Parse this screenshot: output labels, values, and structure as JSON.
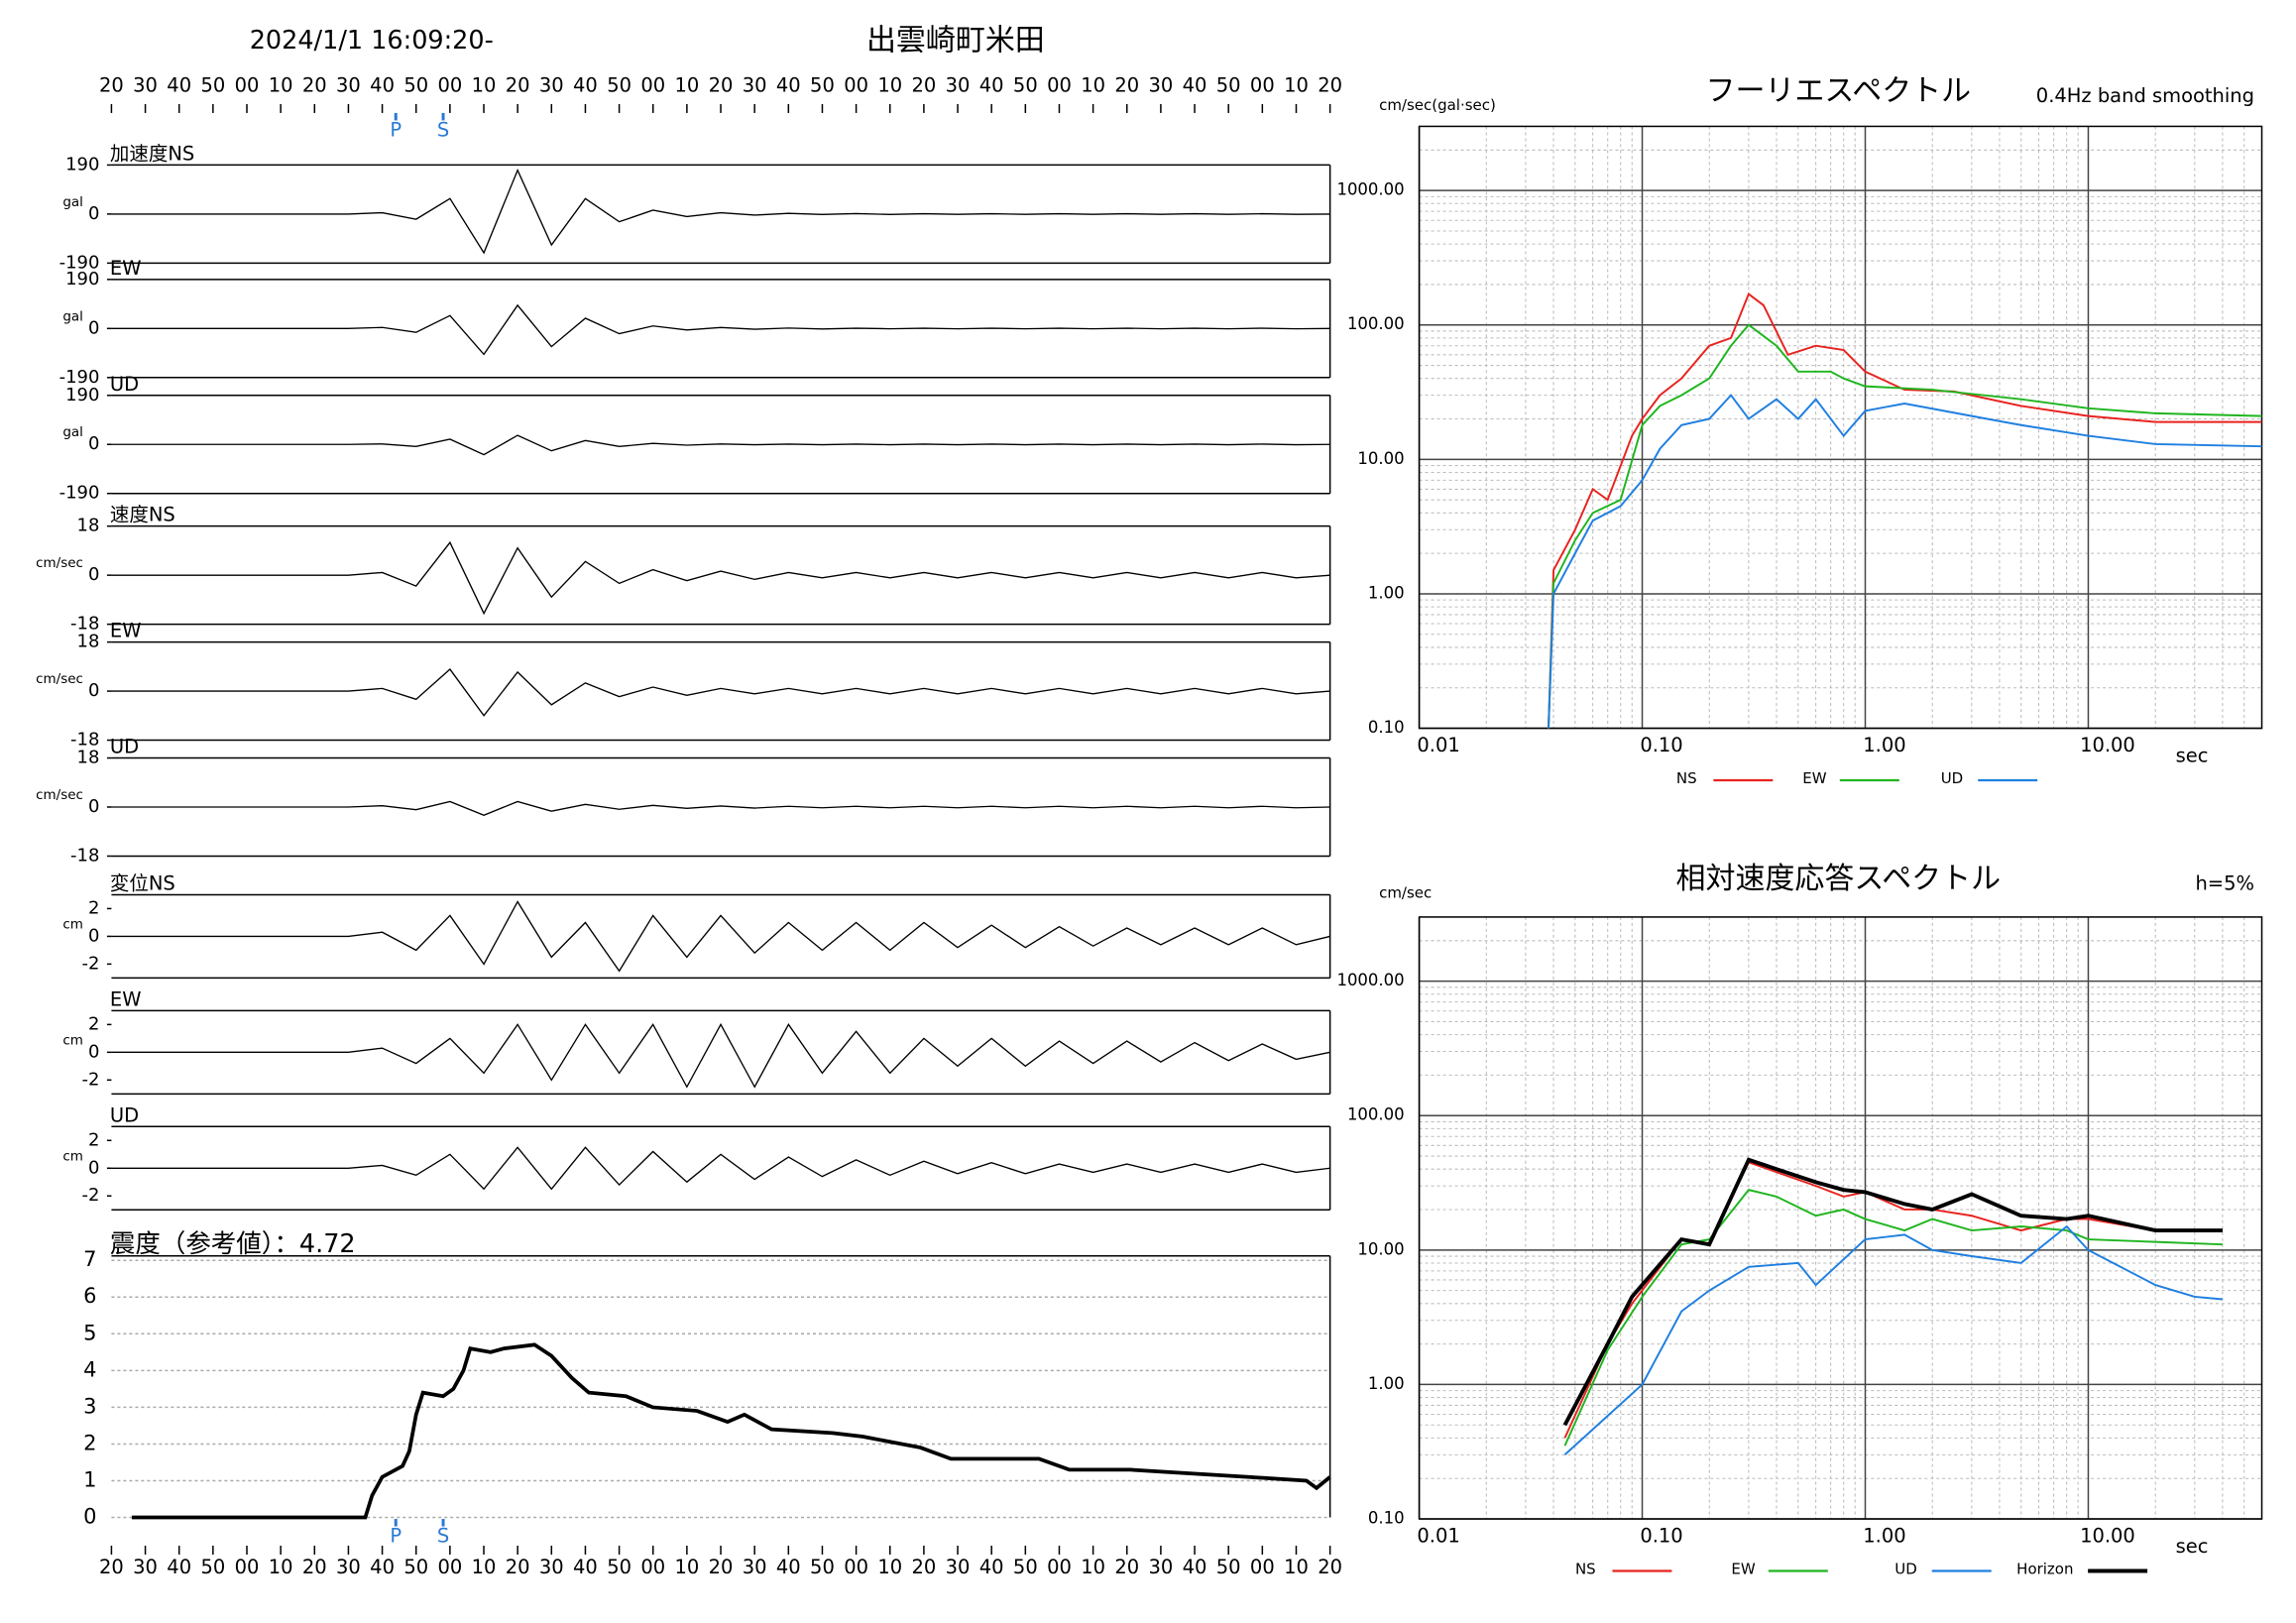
{
  "chart_data": [
    {
      "type": "waveform",
      "title": "2024/1/1 16:09:20-",
      "subtitle": "出雲崎町米田",
      "xlim": [
        0,
        360
      ],
      "xticks": [
        {
          "value": 0,
          "label": "20"
        },
        {
          "value": 10,
          "label": "30"
        },
        {
          "value": 20,
          "label": "40"
        },
        {
          "value": 30,
          "label": "50"
        },
        {
          "value": 40,
          "label": "00"
        },
        {
          "value": 50,
          "label": "10"
        },
        {
          "value": 60,
          "label": "20"
        },
        {
          "value": 70,
          "label": "30"
        },
        {
          "value": 80,
          "label": "40"
        },
        {
          "value": 90,
          "label": "50"
        },
        {
          "value": 100,
          "label": "00"
        },
        {
          "value": 110,
          "label": "10"
        },
        {
          "value": 120,
          "label": "20"
        },
        {
          "value": 130,
          "label": "30"
        },
        {
          "value": 140,
          "label": "40"
        },
        {
          "value": 150,
          "label": "50"
        },
        {
          "value": 160,
          "label": "00"
        },
        {
          "value": 170,
          "label": "10"
        },
        {
          "value": 180,
          "label": "20"
        },
        {
          "value": 190,
          "label": "30"
        },
        {
          "value": 200,
          "label": "40"
        },
        {
          "value": 210,
          "label": "50"
        },
        {
          "value": 220,
          "label": "00"
        },
        {
          "value": 230,
          "label": "10"
        },
        {
          "value": 240,
          "label": "20"
        },
        {
          "value": 250,
          "label": "30"
        },
        {
          "value": 260,
          "label": "40"
        },
        {
          "value": 270,
          "label": "50"
        },
        {
          "value": 280,
          "label": "00"
        },
        {
          "value": 290,
          "label": "10"
        },
        {
          "value": 300,
          "label": "20"
        },
        {
          "value": 310,
          "label": "30"
        },
        {
          "value": 320,
          "label": "40"
        },
        {
          "value": 330,
          "label": "50"
        },
        {
          "value": 340,
          "label": "00"
        },
        {
          "value": 350,
          "label": "10"
        },
        {
          "value": 360,
          "label": "20"
        }
      ],
      "markers": [
        {
          "value": 84,
          "label": "P"
        },
        {
          "value": 98,
          "label": "S"
        }
      ],
      "marker_color": "#2a7ad5",
      "x": [
        0,
        10,
        20,
        30,
        40,
        50,
        60,
        70,
        80,
        90,
        100,
        110,
        120,
        130,
        140,
        150,
        160,
        170,
        180,
        190,
        200,
        210,
        220,
        230,
        240,
        250,
        260,
        270,
        280,
        290,
        300,
        310,
        320,
        330,
        340,
        350,
        360
      ],
      "panels": [
        {
          "name": "加速度NS",
          "unit": "gal",
          "ylim": [
            -190,
            190
          ],
          "yticks": [
            190,
            0,
            -190
          ],
          "values": [
            0,
            0,
            0,
            0,
            0,
            0,
            0,
            0,
            5,
            -20,
            60,
            -150,
            170,
            -120,
            60,
            -30,
            15,
            -10,
            5,
            -4,
            3,
            -2,
            2,
            -2,
            1,
            -1,
            1,
            -1,
            1,
            -1,
            1,
            -1,
            1,
            -1,
            1,
            -1,
            0
          ]
        },
        {
          "name": "EW",
          "unit": "gal",
          "ylim": [
            -190,
            190
          ],
          "yticks": [
            190,
            0,
            -190
          ],
          "values": [
            0,
            0,
            0,
            0,
            0,
            0,
            0,
            0,
            4,
            -15,
            50,
            -100,
            90,
            -70,
            40,
            -20,
            10,
            -6,
            4,
            -3,
            2,
            -2,
            1,
            -1,
            1,
            -1,
            1,
            -1,
            1,
            -1,
            1,
            -1,
            1,
            -1,
            1,
            -1,
            0
          ]
        },
        {
          "name": "UD",
          "unit": "gal",
          "ylim": [
            -190,
            190
          ],
          "yticks": [
            190,
            0,
            -190
          ],
          "values": [
            0,
            0,
            0,
            0,
            0,
            0,
            0,
            0,
            2,
            -8,
            20,
            -40,
            35,
            -25,
            15,
            -8,
            4,
            -3,
            2,
            -1,
            1,
            -1,
            1,
            -1,
            1,
            -1,
            1,
            -1,
            1,
            -1,
            1,
            -1,
            1,
            -1,
            1,
            -1,
            0
          ]
        },
        {
          "name": "速度NS",
          "unit": "cm/sec",
          "ylim": [
            -18,
            18
          ],
          "yticks": [
            18,
            0,
            -18
          ],
          "values": [
            0,
            0,
            0,
            0,
            0,
            0,
            0,
            0,
            1,
            -4,
            12,
            -14,
            10,
            -8,
            5,
            -3,
            2,
            -2,
            1.5,
            -1.5,
            1,
            -1,
            1,
            -1,
            1,
            -1,
            1,
            -1,
            1,
            -1,
            1,
            -1,
            1,
            -1,
            1,
            -1,
            0
          ]
        },
        {
          "name": "EW",
          "unit": "cm/sec",
          "ylim": [
            -18,
            18
          ],
          "yticks": [
            18,
            0,
            -18
          ],
          "values": [
            0,
            0,
            0,
            0,
            0,
            0,
            0,
            0,
            1,
            -3,
            8,
            -9,
            7,
            -5,
            3,
            -2,
            1.5,
            -1.5,
            1,
            -1,
            1,
            -1,
            1,
            -1,
            1,
            -1,
            1,
            -1,
            1,
            -1,
            1,
            -1,
            1,
            -1,
            1,
            -1,
            0
          ]
        },
        {
          "name": "UD",
          "unit": "cm/sec",
          "ylim": [
            -18,
            18
          ],
          "yticks": [
            18,
            0,
            -18
          ],
          "values": [
            0,
            0,
            0,
            0,
            0,
            0,
            0,
            0,
            0.5,
            -1,
            2,
            -3,
            2,
            -1.5,
            1,
            -0.8,
            0.6,
            -0.5,
            0.4,
            -0.4,
            0.3,
            -0.3,
            0.3,
            -0.3,
            0.3,
            -0.3,
            0.3,
            -0.3,
            0.3,
            -0.3,
            0.3,
            -0.3,
            0.3,
            -0.3,
            0.3,
            -0.3,
            0
          ]
        },
        {
          "name": "変位NS",
          "unit": "cm",
          "ylim": [
            -3,
            3
          ],
          "yticks": [
            2,
            0,
            -2
          ],
          "values": [
            0,
            0,
            0,
            0,
            0,
            0,
            0,
            0,
            0.3,
            -1,
            1.5,
            -2,
            2.5,
            -1.5,
            1,
            -2.5,
            1.5,
            -1.5,
            1.5,
            -1.2,
            1,
            -1,
            1,
            -1,
            1,
            -0.8,
            0.8,
            -0.8,
            0.7,
            -0.7,
            0.6,
            -0.6,
            0.6,
            -0.6,
            0.6,
            -0.6,
            0
          ]
        },
        {
          "name": "EW",
          "unit": "cm",
          "ylim": [
            -3,
            3
          ],
          "yticks": [
            2,
            0,
            -2
          ],
          "values": [
            0,
            0,
            0,
            0,
            0,
            0,
            0,
            0,
            0.3,
            -0.8,
            1,
            -1.5,
            2,
            -2,
            2,
            -1.5,
            2,
            -2.5,
            2,
            -2.5,
            2,
            -1.5,
            1.5,
            -1.5,
            1,
            -1,
            1,
            -1,
            0.8,
            -0.8,
            0.8,
            -0.7,
            0.7,
            -0.6,
            0.6,
            -0.5,
            0
          ]
        },
        {
          "name": "UD",
          "unit": "cm",
          "ylim": [
            -3,
            3
          ],
          "yticks": [
            2,
            0,
            -2
          ],
          "values": [
            0,
            0,
            0,
            0,
            0,
            0,
            0,
            0,
            0.2,
            -0.5,
            1,
            -1.5,
            1.5,
            -1.5,
            1.5,
            -1.2,
            1.2,
            -1,
            1,
            -0.8,
            0.8,
            -0.6,
            0.6,
            -0.5,
            0.5,
            -0.4,
            0.4,
            -0.4,
            0.3,
            -0.3,
            0.3,
            -0.3,
            0.3,
            -0.3,
            0.3,
            -0.3,
            0
          ]
        }
      ]
    },
    {
      "type": "line",
      "title": "震度（参考値）：4.72",
      "xlim": [
        0,
        360
      ],
      "ylim": [
        0,
        7
      ],
      "yticks": [
        0,
        1,
        2,
        3,
        4,
        5,
        6,
        7
      ],
      "grid": true,
      "color": "#000000",
      "x": [
        6,
        75,
        77,
        80,
        86,
        88,
        90,
        92,
        98,
        101,
        104,
        106,
        112,
        116,
        125,
        130,
        136,
        141,
        152,
        160,
        173,
        182,
        187,
        195,
        213,
        222,
        239,
        248,
        274,
        283,
        301,
        318,
        336,
        353,
        356,
        360
      ],
      "values": [
        0,
        0,
        0.6,
        1.1,
        1.4,
        1.8,
        2.8,
        3.4,
        3.3,
        3.5,
        4.0,
        4.6,
        4.5,
        4.6,
        4.7,
        4.4,
        3.8,
        3.4,
        3.3,
        3.0,
        2.9,
        2.6,
        2.8,
        2.4,
        2.3,
        2.2,
        1.9,
        1.6,
        1.6,
        1.3,
        1.3,
        1.2,
        1.1,
        1.0,
        0.8,
        1.1
      ]
    },
    {
      "type": "spectrum",
      "title": "フーリエスペクトル",
      "subtitle": "0.4Hz band smoothing",
      "y_label": "cm/sec(gal·sec)",
      "x_label": "sec",
      "log_x": true,
      "log_y": true,
      "xlim": [
        0.01,
        60
      ],
      "ylim": [
        0.1,
        3000
      ],
      "xticks": [
        {
          "value": 0.01,
          "label": "0.01"
        },
        {
          "value": 0.1,
          "label": "0.10"
        },
        {
          "value": 1,
          "label": "1.00"
        },
        {
          "value": 10,
          "label": "10.00"
        }
      ],
      "yticks": [
        {
          "value": 0.1,
          "label": "0.10"
        },
        {
          "value": 1,
          "label": "1.00"
        },
        {
          "value": 10,
          "label": "10.00"
        },
        {
          "value": 100,
          "label": "100.00"
        },
        {
          "value": 1000,
          "label": "1000.00"
        }
      ],
      "series": [
        {
          "name": "NS",
          "color": "#e8231f",
          "x": [
            0.038,
            0.04,
            0.05,
            0.06,
            0.07,
            0.09,
            0.1,
            0.12,
            0.15,
            0.2,
            0.25,
            0.3,
            0.35,
            0.45,
            0.6,
            0.8,
            1.0,
            1.5,
            2.5,
            5,
            10,
            20,
            60
          ],
          "values": [
            0.1,
            1.5,
            3,
            6,
            5,
            15,
            20,
            30,
            40,
            70,
            80,
            170,
            140,
            60,
            70,
            65,
            45,
            33,
            32,
            25,
            21,
            19,
            19
          ]
        },
        {
          "name": "EW",
          "color": "#1fb51f",
          "x": [
            0.038,
            0.04,
            0.05,
            0.06,
            0.08,
            0.1,
            0.12,
            0.15,
            0.2,
            0.25,
            0.3,
            0.4,
            0.5,
            0.7,
            0.8,
            1.0,
            2,
            5,
            10,
            20,
            60
          ],
          "values": [
            0.1,
            1.2,
            2.5,
            4,
            5,
            18,
            25,
            30,
            40,
            70,
            100,
            70,
            45,
            45,
            40,
            35,
            33,
            28,
            24,
            22,
            21
          ]
        },
        {
          "name": "UD",
          "color": "#1f7fe0",
          "x": [
            0.038,
            0.04,
            0.05,
            0.06,
            0.08,
            0.1,
            0.12,
            0.15,
            0.2,
            0.25,
            0.3,
            0.4,
            0.5,
            0.6,
            0.8,
            1.0,
            1.5,
            3,
            5,
            10,
            20,
            60
          ],
          "values": [
            0.1,
            1,
            2,
            3.5,
            4.5,
            7,
            12,
            18,
            20,
            30,
            20,
            28,
            20,
            28,
            15,
            23,
            26,
            21,
            18,
            15,
            13,
            12.5
          ]
        }
      ]
    },
    {
      "type": "spectrum",
      "title": "相対速度応答スペクトル",
      "subtitle": "h=5%",
      "y_label": "cm/sec",
      "x_label": "sec",
      "log_x": true,
      "log_y": true,
      "xlim": [
        0.01,
        60
      ],
      "ylim": [
        0.1,
        3000
      ],
      "xticks": [
        {
          "value": 0.01,
          "label": "0.01"
        },
        {
          "value": 0.1,
          "label": "0.10"
        },
        {
          "value": 1,
          "label": "1.00"
        },
        {
          "value": 10,
          "label": "10.00"
        }
      ],
      "yticks": [
        {
          "value": 0.1,
          "label": "0.10"
        },
        {
          "value": 1,
          "label": "1.00"
        },
        {
          "value": 10,
          "label": "10.00"
        },
        {
          "value": 100,
          "label": "100.00"
        },
        {
          "value": 1000,
          "label": "1000.00"
        }
      ],
      "series": [
        {
          "name": "NS",
          "color": "#e8231f",
          "x": [
            0.045,
            0.07,
            0.09,
            0.15,
            0.2,
            0.3,
            0.4,
            0.6,
            0.8,
            1,
            1.5,
            2,
            3,
            5,
            8,
            10,
            20,
            40
          ],
          "values": [
            0.4,
            2,
            4,
            12,
            11,
            45,
            38,
            30,
            25,
            27,
            20,
            20,
            18,
            14,
            17,
            17,
            14,
            14
          ]
        },
        {
          "name": "EW",
          "color": "#1fb51f",
          "x": [
            0.045,
            0.07,
            0.1,
            0.15,
            0.2,
            0.3,
            0.4,
            0.6,
            0.8,
            1,
            1.5,
            2,
            3,
            5,
            8,
            10,
            20,
            40
          ],
          "values": [
            0.35,
            1.8,
            4.5,
            11,
            12,
            28,
            25,
            18,
            20,
            17,
            14,
            17,
            14,
            15,
            14,
            12,
            11.5,
            11
          ]
        },
        {
          "name": "UD",
          "color": "#1f7fe0",
          "x": [
            0.045,
            0.1,
            0.15,
            0.2,
            0.3,
            0.5,
            0.6,
            1,
            1.5,
            2,
            3,
            5,
            8,
            10,
            20,
            30,
            40
          ],
          "values": [
            0.3,
            1,
            3.5,
            5,
            7.5,
            8,
            5.5,
            12,
            13,
            10,
            9,
            8,
            15,
            10,
            5.5,
            4.5,
            4.3
          ]
        },
        {
          "name": "Horizon",
          "color": "#000000",
          "x": [
            0.045,
            0.07,
            0.09,
            0.15,
            0.2,
            0.3,
            0.4,
            0.6,
            0.8,
            1,
            1.5,
            2,
            3,
            5,
            8,
            10,
            20,
            40
          ],
          "values": [
            0.5,
            2,
            4.5,
            12,
            11,
            47,
            40,
            32,
            28,
            27,
            22,
            20,
            26,
            18,
            17,
            18,
            14,
            14
          ]
        }
      ]
    }
  ]
}
